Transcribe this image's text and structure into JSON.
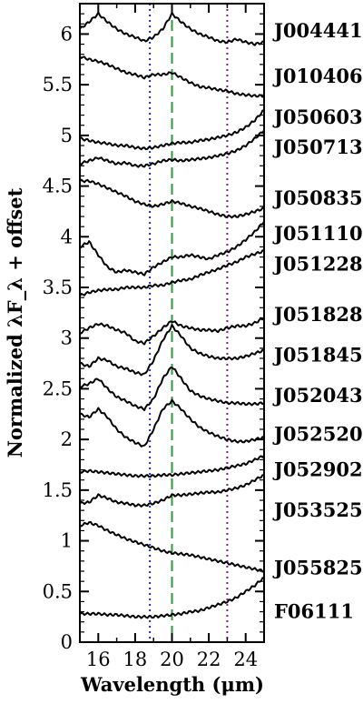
{
  "chart_data": {
    "type": "line",
    "xlabel": "Wavelength (μm)",
    "ylabel": "Normalized λF_λ + offset",
    "xlim": [
      15,
      25
    ],
    "ylim": [
      0,
      6.3
    ],
    "x_ticks": [
      16,
      18,
      20,
      22,
      24
    ],
    "x_tick_labels": [
      "16",
      "18",
      "20",
      "22",
      "24"
    ],
    "y_ticks": [
      0,
      0.5,
      1,
      1.5,
      2,
      2.5,
      3,
      3.5,
      4,
      4.5,
      5,
      5.5,
      6
    ],
    "y_tick_labels": [
      "0",
      "0.5",
      "1",
      "1.5",
      "2",
      "2.5",
      "3",
      "3.5",
      "4",
      "4.5",
      "5",
      "5.5",
      "6"
    ],
    "grid": false,
    "legend": "none",
    "reference_lines": [
      {
        "x": 18.8,
        "style": "dotted",
        "color": "#1f2fb0"
      },
      {
        "x": 20.0,
        "style": "dashed",
        "color": "#2e9a3a"
      },
      {
        "x": 23.0,
        "style": "dotted",
        "color": "#8a1a8a"
      }
    ],
    "series_labels": [
      {
        "name": "J004441",
        "y": 6.03
      },
      {
        "name": "J010406",
        "y": 5.58
      },
      {
        "name": "J050603",
        "y": 5.18
      },
      {
        "name": "J050713",
        "y": 4.88
      },
      {
        "name": "J050835",
        "y": 4.38
      },
      {
        "name": "J051110",
        "y": 4.03
      },
      {
        "name": "J051228",
        "y": 3.73
      },
      {
        "name": "J051828",
        "y": 3.23
      },
      {
        "name": "J051845",
        "y": 2.83
      },
      {
        "name": "J052043",
        "y": 2.43
      },
      {
        "name": "J052520",
        "y": 2.05
      },
      {
        "name": "J052902",
        "y": 1.7
      },
      {
        "name": "J053525",
        "y": 1.3
      },
      {
        "name": "J055825",
        "y": 0.73
      },
      {
        "name": "F06111",
        "y": 0.3
      }
    ],
    "series": [
      {
        "x": [
          15,
          15.5,
          16,
          16.5,
          17,
          17.5,
          18,
          18.5,
          19,
          19.5,
          20,
          20.5,
          21,
          21.5,
          22,
          22.5,
          23,
          23.5,
          24,
          24.5,
          25
        ],
        "y": [
          6.05,
          6.12,
          6.2,
          6.12,
          6.05,
          6.0,
          5.97,
          5.93,
          5.97,
          6.05,
          6.2,
          6.12,
          6.05,
          6.0,
          5.97,
          5.93,
          5.92,
          5.95,
          5.92,
          5.9,
          5.92
        ]
      },
      {
        "x": [
          15,
          15.5,
          16,
          16.5,
          17,
          17.5,
          18,
          18.5,
          19,
          19.5,
          20,
          20.5,
          21,
          21.5,
          22,
          22.5,
          23,
          23.5,
          24,
          24.5,
          25
        ],
        "y": [
          5.78,
          5.75,
          5.73,
          5.7,
          5.66,
          5.62,
          5.6,
          5.57,
          5.6,
          5.6,
          5.62,
          5.57,
          5.52,
          5.48,
          5.47,
          5.45,
          5.44,
          5.41,
          5.4,
          5.39,
          5.39
        ]
      },
      {
        "x": [
          15,
          15.5,
          16,
          16.5,
          17,
          17.5,
          18,
          18.5,
          19,
          19.5,
          20,
          20.5,
          21,
          21.5,
          22,
          22.5,
          23,
          23.5,
          24,
          24.5,
          25
        ],
        "y": [
          4.97,
          4.95,
          4.93,
          4.92,
          4.9,
          4.9,
          4.88,
          4.87,
          4.88,
          4.9,
          4.92,
          4.93,
          4.93,
          4.95,
          4.96,
          4.98,
          5.0,
          5.03,
          5.08,
          5.15,
          5.25
        ]
      },
      {
        "x": [
          15,
          15.5,
          16,
          16.5,
          17,
          17.5,
          18,
          18.5,
          19,
          19.5,
          20,
          20.5,
          21,
          21.5,
          22,
          22.5,
          23,
          23.5,
          24,
          24.5,
          25
        ],
        "y": [
          4.72,
          4.75,
          4.78,
          4.75,
          4.72,
          4.73,
          4.7,
          4.7,
          4.72,
          4.75,
          4.76,
          4.75,
          4.76,
          4.77,
          4.78,
          4.8,
          4.82,
          4.85,
          4.9,
          4.97,
          5.05
        ]
      },
      {
        "x": [
          15,
          15.5,
          16,
          16.5,
          17,
          17.5,
          18,
          18.5,
          19,
          19.5,
          20,
          20.5,
          21,
          21.5,
          22,
          22.5,
          23,
          23.5,
          24,
          24.5,
          25
        ],
        "y": [
          4.55,
          4.55,
          4.52,
          4.48,
          4.44,
          4.4,
          4.35,
          4.32,
          4.3,
          4.32,
          4.35,
          4.33,
          4.3,
          4.28,
          4.25,
          4.22,
          4.2,
          4.2,
          4.22,
          4.25,
          4.28
        ]
      },
      {
        "x": [
          15,
          15.5,
          16,
          16.5,
          17,
          17.5,
          18,
          18.5,
          19,
          19.5,
          20,
          20.5,
          21,
          21.5,
          22,
          22.5,
          23,
          23.5,
          24,
          24.5,
          25
        ],
        "y": [
          3.9,
          3.95,
          3.82,
          3.7,
          3.65,
          3.67,
          3.65,
          3.63,
          3.7,
          3.75,
          3.8,
          3.8,
          3.82,
          3.8,
          3.78,
          3.82,
          3.85,
          3.9,
          3.97,
          4.05,
          4.15
        ]
      },
      {
        "x": [
          15,
          15.5,
          16,
          16.5,
          17,
          17.5,
          18,
          18.5,
          19,
          19.5,
          20,
          20.5,
          21,
          21.5,
          22,
          22.5,
          23,
          23.5,
          24,
          24.5,
          25
        ],
        "y": [
          3.42,
          3.45,
          3.47,
          3.48,
          3.48,
          3.5,
          3.5,
          3.5,
          3.52,
          3.52,
          3.55,
          3.57,
          3.58,
          3.62,
          3.65,
          3.68,
          3.72,
          3.75,
          3.8,
          3.83,
          3.86
        ]
      },
      {
        "x": [
          15,
          15.5,
          16,
          16.5,
          17,
          17.5,
          18,
          18.5,
          19,
          19.5,
          20,
          20.5,
          21,
          21.5,
          22,
          22.5,
          23,
          23.5,
          24,
          24.5,
          25
        ],
        "y": [
          3.05,
          3.1,
          3.14,
          3.12,
          3.08,
          3.05,
          2.97,
          2.95,
          3.02,
          3.1,
          3.17,
          3.12,
          3.1,
          3.08,
          3.08,
          3.07,
          3.1,
          3.12,
          3.12,
          3.15,
          3.2
        ]
      },
      {
        "x": [
          15,
          15.5,
          16,
          16.5,
          17,
          17.5,
          18,
          18.5,
          19,
          19.5,
          20,
          20.5,
          21,
          21.5,
          22,
          22.5,
          23,
          23.5,
          24,
          24.5,
          25
        ],
        "y": [
          2.75,
          2.72,
          2.8,
          2.78,
          2.72,
          2.7,
          2.66,
          2.64,
          2.78,
          2.98,
          3.12,
          3.02,
          2.9,
          2.85,
          2.82,
          2.8,
          2.8,
          2.8,
          2.82,
          2.85,
          2.88
        ]
      },
      {
        "x": [
          15,
          15.5,
          16,
          16.5,
          17,
          17.5,
          18,
          18.5,
          19,
          19.5,
          20,
          20.5,
          21,
          21.5,
          22,
          22.5,
          23,
          23.5,
          24,
          24.5,
          25
        ],
        "y": [
          2.52,
          2.55,
          2.6,
          2.5,
          2.42,
          2.38,
          2.33,
          2.3,
          2.4,
          2.6,
          2.72,
          2.6,
          2.48,
          2.43,
          2.4,
          2.38,
          2.36,
          2.36,
          2.35,
          2.35,
          2.36
        ]
      },
      {
        "x": [
          15,
          15.5,
          16,
          16.5,
          17,
          17.5,
          18,
          18.5,
          19,
          19.5,
          20,
          20.5,
          21,
          21.5,
          22,
          22.5,
          23,
          23.5,
          24,
          24.5,
          25
        ],
        "y": [
          2.25,
          2.22,
          2.3,
          2.22,
          2.1,
          2.02,
          1.97,
          1.93,
          2.1,
          2.3,
          2.38,
          2.3,
          2.2,
          2.12,
          2.07,
          2.03,
          2.0,
          1.98,
          1.98,
          2.0,
          2.02
        ]
      },
      {
        "x": [
          15,
          15.5,
          16,
          16.5,
          17,
          17.5,
          18,
          18.5,
          19,
          19.5,
          20,
          20.5,
          21,
          21.5,
          22,
          22.5,
          23,
          23.5,
          24,
          24.5,
          25
        ],
        "y": [
          1.68,
          1.69,
          1.68,
          1.67,
          1.66,
          1.65,
          1.64,
          1.64,
          1.64,
          1.65,
          1.65,
          1.66,
          1.67,
          1.68,
          1.69,
          1.7,
          1.72,
          1.74,
          1.76,
          1.8,
          1.84
        ]
      },
      {
        "x": [
          15,
          15.5,
          16,
          16.5,
          17,
          17.5,
          18,
          18.5,
          19,
          19.5,
          20,
          20.5,
          21,
          21.5,
          22,
          22.5,
          23,
          23.5,
          24,
          24.5,
          25
        ],
        "y": [
          1.37,
          1.38,
          1.45,
          1.42,
          1.38,
          1.37,
          1.35,
          1.35,
          1.37,
          1.4,
          1.45,
          1.45,
          1.46,
          1.47,
          1.48,
          1.48,
          1.5,
          1.52,
          1.55,
          1.6,
          1.65
        ]
      },
      {
        "x": [
          15,
          15.5,
          16,
          16.5,
          17,
          17.5,
          18,
          18.5,
          19,
          19.5,
          20,
          20.5,
          21,
          21.5,
          22,
          22.5,
          23,
          23.5,
          24,
          24.5,
          25
        ],
        "y": [
          1.15,
          1.18,
          1.15,
          1.1,
          1.06,
          1.02,
          0.99,
          0.96,
          0.93,
          0.9,
          0.88,
          0.87,
          0.86,
          0.84,
          0.82,
          0.8,
          0.78,
          0.76,
          0.74,
          0.72,
          0.7
        ]
      },
      {
        "x": [
          15,
          15.5,
          16,
          16.5,
          17,
          17.5,
          18,
          18.5,
          19,
          19.5,
          20,
          20.5,
          21,
          21.5,
          22,
          22.5,
          23,
          23.5,
          24,
          24.5,
          25
        ],
        "y": [
          0.28,
          0.28,
          0.28,
          0.27,
          0.27,
          0.26,
          0.25,
          0.25,
          0.25,
          0.26,
          0.27,
          0.28,
          0.3,
          0.31,
          0.34,
          0.37,
          0.4,
          0.44,
          0.5,
          0.56,
          0.64
        ]
      }
    ]
  }
}
